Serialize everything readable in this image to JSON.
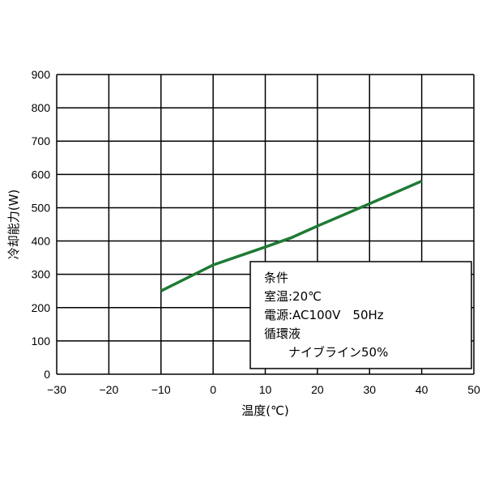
{
  "chart_data": {
    "type": "line",
    "xlabel": "温度(℃)",
    "ylabel": "冷却能力(W)",
    "xlim": [
      -30,
      50
    ],
    "ylim": [
      0,
      900
    ],
    "xticks": [
      -30,
      -20,
      -10,
      0,
      10,
      20,
      30,
      40,
      50
    ],
    "yticks": [
      0,
      100,
      200,
      300,
      400,
      500,
      600,
      700,
      800,
      900
    ],
    "grid": true,
    "series": [
      {
        "x": [
          -10,
          0,
          10,
          15,
          20,
          30,
          40
        ],
        "y": [
          250,
          328,
          382,
          410,
          445,
          512,
          580
        ],
        "color": "#1e7a34"
      }
    ],
    "annotation": {
      "lines": [
        "条件",
        "室温:20℃",
        "電源:AC100V　50Hz",
        "循環液",
        "　　ナイブライン50%"
      ],
      "placement": "bottom-right"
    }
  }
}
